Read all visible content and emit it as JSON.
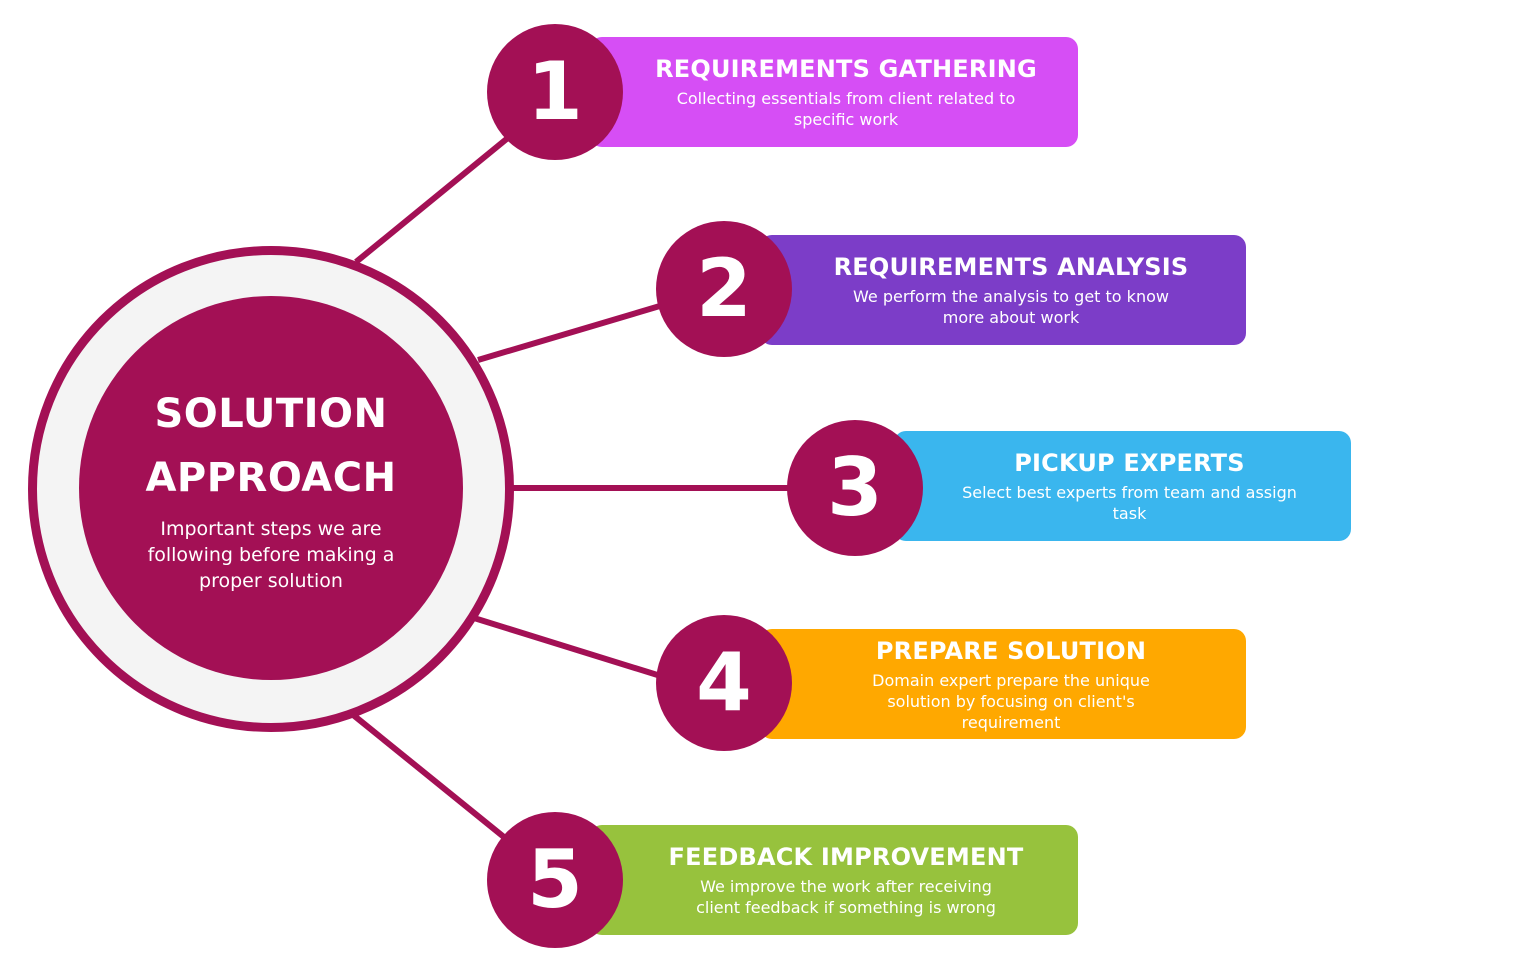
{
  "hub": {
    "title_line1": "SOLUTION",
    "title_line2": "APPROACH",
    "subtitle": "Important steps we are following before making a proper solution"
  },
  "steps": [
    {
      "number": "1",
      "title": "REQUIREMENTS GATHERING",
      "description": "Collecting essentials from client related to specific work",
      "color": "#d64ef5"
    },
    {
      "number": "2",
      "title": "REQUIREMENTS ANALYSIS",
      "description": "We perform the analysis to get to know more about work",
      "color": "#7c3dc8"
    },
    {
      "number": "3",
      "title": "PICKUP EXPERTS",
      "description": "Select best experts from team and assign task",
      "color": "#3ab6ee"
    },
    {
      "number": "4",
      "title": "PREPARE SOLUTION",
      "description": "Domain expert prepare the unique solution by focusing on client's requirement",
      "color": "#ffa800"
    },
    {
      "number": "5",
      "title": "FEEDBACK IMPROVEMENT",
      "description": "We improve the work after receiving client feedback if something is wrong",
      "color": "#97c23d"
    }
  ],
  "colors": {
    "primary": "#a31055",
    "ring_fill": "#f4f4f4",
    "text": "#ffffff"
  }
}
